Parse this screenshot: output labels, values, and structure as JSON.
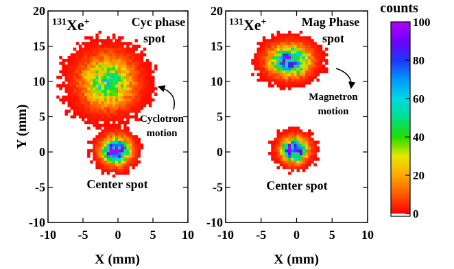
{
  "chart_data": [
    {
      "type": "heatmap",
      "panel_label": "Cyc phase spot",
      "ion_mass": "131",
      "ion_symbol": "Xe",
      "ion_charge": "+",
      "title_line1": "Cyc phase",
      "title_line2": "spot",
      "xlabel": "X (mm)",
      "ylabel": "Y (mm)",
      "xlim": [
        -10,
        10
      ],
      "ylim": [
        -10,
        20
      ],
      "xticks": [
        -10,
        -5,
        0,
        5,
        10
      ],
      "yticks": [
        -10,
        -5,
        0,
        5,
        10,
        15,
        20
      ],
      "blobs": [
        {
          "name": "Cyc phase spot",
          "center": [
            -1.5,
            10
          ],
          "sigma": [
            2.3,
            2.2
          ],
          "peak": 48
        },
        {
          "name": "Center spot",
          "center": [
            -0.3,
            0.2
          ],
          "sigma": [
            1.2,
            1.1
          ],
          "peak": 100
        }
      ],
      "annotations": [
        {
          "text": "Cyclotron",
          "x": 5.9,
          "y": 4.6
        },
        {
          "text": "motion",
          "x": 5.9,
          "y": 2.5
        },
        {
          "text": "Center spot",
          "x": -0.3,
          "y": -4.8
        }
      ],
      "arrow": {
        "from": [
          8.0,
          5.3
        ],
        "to": [
          5.4,
          9.2
        ]
      }
    },
    {
      "type": "heatmap",
      "panel_label": "Mag Phase spot",
      "ion_mass": "131",
      "ion_symbol": "Xe",
      "ion_charge": "+",
      "title_line1": "Mag Phase",
      "title_line2": "spot",
      "xlabel": "X (mm)",
      "ylabel": "",
      "xlim": [
        -10,
        10
      ],
      "ylim": [
        -10,
        20
      ],
      "xticks": [
        -10,
        -5,
        0,
        5,
        10
      ],
      "yticks": [
        -10,
        -5,
        0,
        5,
        10,
        15,
        20
      ],
      "blobs": [
        {
          "name": "Mag phase spot",
          "center": [
            -1.0,
            13
          ],
          "sigma": [
            1.7,
            1.3
          ],
          "peak": 80
        },
        {
          "name": "Center spot",
          "center": [
            -0.3,
            0.3
          ],
          "sigma": [
            1.1,
            1.0
          ],
          "peak": 100
        }
      ],
      "annotations": [
        {
          "text": "Magnetron",
          "x": 5.2,
          "y": 7.6
        },
        {
          "text": "motion",
          "x": 5.2,
          "y": 5.5
        },
        {
          "text": "Center spot",
          "x": 0.0,
          "y": -5.0
        }
      ],
      "arrow": {
        "from": [
          5.5,
          11.8
        ],
        "to": [
          8.0,
          8.6
        ]
      }
    }
  ],
  "colorbar": {
    "label": "counts",
    "range": [
      0,
      100
    ],
    "ticks": [
      0,
      20,
      40,
      60,
      80,
      100
    ],
    "stops": [
      {
        "v": 0,
        "c": "#ff0000"
      },
      {
        "v": 10,
        "c": "#ff5a00"
      },
      {
        "v": 20,
        "c": "#ffaa00"
      },
      {
        "v": 30,
        "c": "#e6e600"
      },
      {
        "v": 40,
        "c": "#22dd00"
      },
      {
        "v": 50,
        "c": "#00e08a"
      },
      {
        "v": 60,
        "c": "#00d8e8"
      },
      {
        "v": 70,
        "c": "#0098ff"
      },
      {
        "v": 80,
        "c": "#1e36ff"
      },
      {
        "v": 90,
        "c": "#7000ff"
      },
      {
        "v": 100,
        "c": "#b000ff"
      }
    ]
  }
}
